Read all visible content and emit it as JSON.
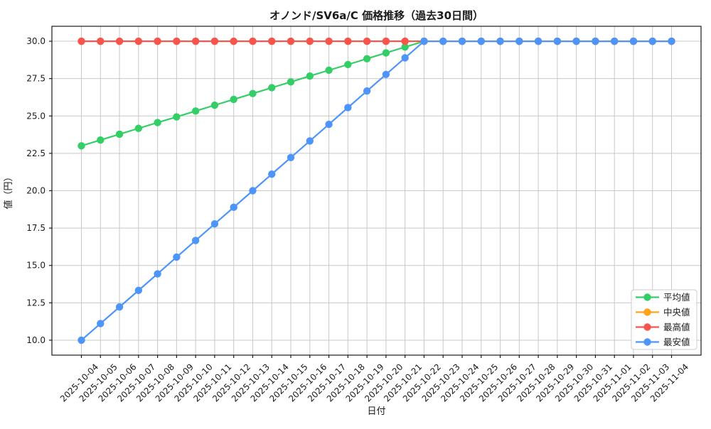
{
  "chart_data": {
    "type": "line",
    "title": "オノンド/SV6a/C 価格推移（過去30日間）",
    "xlabel": "日付",
    "ylabel": "値（円）",
    "ylim": [
      9,
      31
    ],
    "grid": true,
    "legend_position": "lower right",
    "x_tick_rotation": 45,
    "background_color": "#ffffff",
    "grid_color": "#c8c8c8",
    "yticks": [
      {
        "value": 10.0,
        "label": "10.0"
      },
      {
        "value": 12.5,
        "label": "12.5"
      },
      {
        "value": 15.0,
        "label": "15.0"
      },
      {
        "value": 17.5,
        "label": "17.5"
      },
      {
        "value": 20.0,
        "label": "20.0"
      },
      {
        "value": 22.5,
        "label": "22.5"
      },
      {
        "value": 25.0,
        "label": "25.0"
      },
      {
        "value": 27.5,
        "label": "27.5"
      },
      {
        "value": 30.0,
        "label": "30.0"
      }
    ],
    "categories": [
      "2025-10-04",
      "2025-10-05",
      "2025-10-06",
      "2025-10-07",
      "2025-10-08",
      "2025-10-09",
      "2025-10-10",
      "2025-10-11",
      "2025-10-12",
      "2025-10-13",
      "2025-10-14",
      "2025-10-15",
      "2025-10-16",
      "2025-10-17",
      "2025-10-18",
      "2025-10-19",
      "2025-10-20",
      "2025-10-21",
      "2025-10-22",
      "2025-10-23",
      "2025-10-24",
      "2025-10-25",
      "2025-10-26",
      "2025-10-27",
      "2025-10-28",
      "2025-10-29",
      "2025-10-30",
      "2025-10-31",
      "2025-11-01",
      "2025-11-02",
      "2025-11-03",
      "2025-11-04"
    ],
    "series": [
      {
        "key": "average",
        "name": "平均値",
        "color": "#33cf66",
        "values": [
          23.0,
          23.39,
          23.78,
          24.17,
          24.56,
          24.94,
          25.33,
          25.72,
          26.11,
          26.5,
          26.89,
          27.28,
          27.67,
          28.06,
          28.44,
          28.83,
          29.22,
          29.61,
          30.0,
          30.0,
          30.0,
          30.0,
          30.0,
          30.0,
          30.0,
          30.0,
          30.0,
          30.0,
          30.0,
          30.0,
          30.0,
          30.0
        ]
      },
      {
        "key": "median",
        "name": "中央値",
        "color": "#ffa318",
        "values": [
          30.0,
          30.0,
          30.0,
          30.0,
          30.0,
          30.0,
          30.0,
          30.0,
          30.0,
          30.0,
          30.0,
          30.0,
          30.0,
          30.0,
          30.0,
          30.0,
          30.0,
          30.0,
          30.0,
          30.0,
          30.0,
          30.0,
          30.0,
          30.0,
          30.0,
          30.0,
          30.0,
          30.0,
          30.0,
          30.0,
          30.0,
          30.0
        ]
      },
      {
        "key": "highest",
        "name": "最高値",
        "color": "#f8534c",
        "values": [
          30.0,
          30.0,
          30.0,
          30.0,
          30.0,
          30.0,
          30.0,
          30.0,
          30.0,
          30.0,
          30.0,
          30.0,
          30.0,
          30.0,
          30.0,
          30.0,
          30.0,
          30.0,
          30.0,
          30.0,
          30.0,
          30.0,
          30.0,
          30.0,
          30.0,
          30.0,
          30.0,
          30.0,
          30.0,
          30.0,
          30.0,
          30.0
        ]
      },
      {
        "key": "lowest",
        "name": "最安値",
        "color": "#4e95fb",
        "values": [
          10.0,
          11.11,
          12.22,
          13.33,
          14.44,
          15.56,
          16.67,
          17.78,
          18.89,
          20.0,
          21.11,
          22.22,
          23.33,
          24.44,
          25.56,
          26.67,
          27.78,
          28.89,
          30.0,
          30.0,
          30.0,
          30.0,
          30.0,
          30.0,
          30.0,
          30.0,
          30.0,
          30.0,
          30.0,
          30.0,
          30.0,
          30.0
        ]
      }
    ]
  }
}
